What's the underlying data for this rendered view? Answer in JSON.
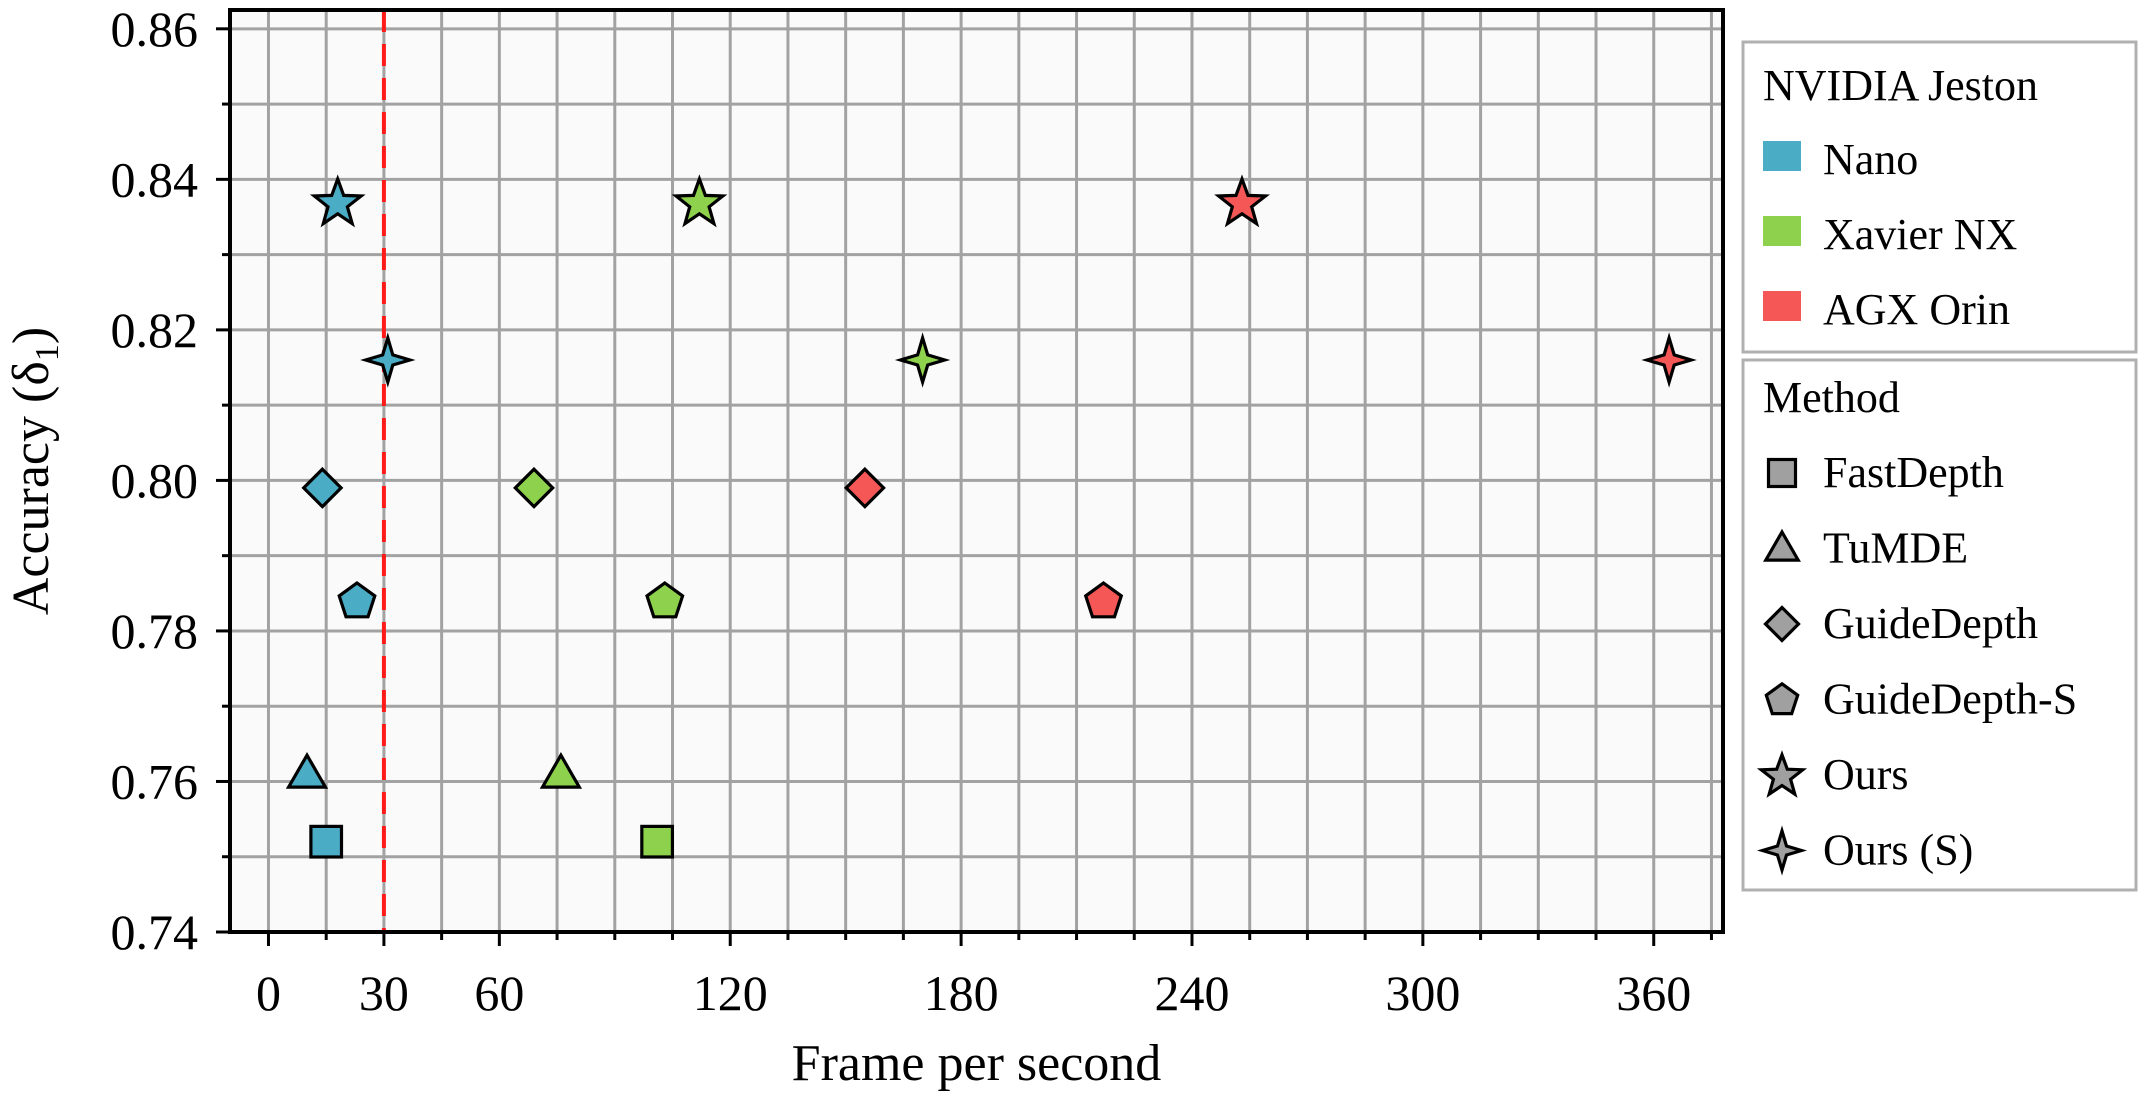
{
  "chart_data": {
    "type": "scatter",
    "xlabel": "Frame per second",
    "ylabel": "Accuracy (δ",
    "ylabel_sub": "1",
    "ylabel_close": ")",
    "xlim": [
      -10,
      378
    ],
    "ylim": [
      0.74,
      0.8625
    ],
    "xticks": [
      0,
      30,
      60,
      120,
      180,
      240,
      300,
      360
    ],
    "xtick_labels": [
      "0",
      "30",
      "60",
      "120",
      "180",
      "240",
      "300",
      "360"
    ],
    "highlight_tick": "30",
    "yticks": [
      0.74,
      0.76,
      0.78,
      0.8,
      0.82,
      0.84,
      0.86
    ],
    "ytick_labels": [
      "0.74",
      "0.76",
      "0.78",
      "0.80",
      "0.82",
      "0.84",
      "0.86"
    ],
    "grid": true,
    "reference_line": {
      "x": 30,
      "color": "#ff1a1a",
      "style": "dashed"
    },
    "devices": [
      {
        "name": "Nano",
        "color": "#4bacc6"
      },
      {
        "name": "Xavier NX",
        "color": "#8dd14c"
      },
      {
        "name": "AGX Orin",
        "color": "#f55757"
      }
    ],
    "methods": [
      {
        "name": "FastDepth",
        "marker": "square"
      },
      {
        "name": "TuMDE",
        "marker": "triangle"
      },
      {
        "name": "GuideDepth",
        "marker": "diamond"
      },
      {
        "name": "GuideDepth-S",
        "marker": "pentagon"
      },
      {
        "name": "Ours",
        "marker": "star5"
      },
      {
        "name": "Ours (S)",
        "marker": "star4"
      }
    ],
    "points": [
      {
        "device": "Nano",
        "method": "FastDepth",
        "x": 15,
        "y": 0.752
      },
      {
        "device": "Nano",
        "method": "TuMDE",
        "x": 10,
        "y": 0.761
      },
      {
        "device": "Nano",
        "method": "GuideDepth",
        "x": 14,
        "y": 0.799
      },
      {
        "device": "Nano",
        "method": "GuideDepth-S",
        "x": 23,
        "y": 0.784
      },
      {
        "device": "Nano",
        "method": "Ours",
        "x": 18,
        "y": 0.837
      },
      {
        "device": "Nano",
        "method": "Ours (S)",
        "x": 31,
        "y": 0.816
      },
      {
        "device": "Xavier NX",
        "method": "FastDepth",
        "x": 101,
        "y": 0.752
      },
      {
        "device": "Xavier NX",
        "method": "TuMDE",
        "x": 76,
        "y": 0.761
      },
      {
        "device": "Xavier NX",
        "method": "GuideDepth",
        "x": 69,
        "y": 0.799
      },
      {
        "device": "Xavier NX",
        "method": "GuideDepth-S",
        "x": 103,
        "y": 0.784
      },
      {
        "device": "Xavier NX",
        "method": "Ours",
        "x": 112,
        "y": 0.837
      },
      {
        "device": "Xavier NX",
        "method": "Ours (S)",
        "x": 170,
        "y": 0.816
      },
      {
        "device": "AGX Orin",
        "method": "GuideDepth",
        "x": 155,
        "y": 0.799
      },
      {
        "device": "AGX Orin",
        "method": "GuideDepth-S",
        "x": 217,
        "y": 0.784
      },
      {
        "device": "AGX Orin",
        "method": "Ours",
        "x": 253,
        "y": 0.837
      },
      {
        "device": "AGX Orin",
        "method": "Ours (S)",
        "x": 364,
        "y": 0.816
      }
    ],
    "legend": {
      "placement": "right",
      "device_title": "NVIDIA Jeston",
      "method_title": "Method",
      "method_color": "#a0a0a0"
    }
  }
}
